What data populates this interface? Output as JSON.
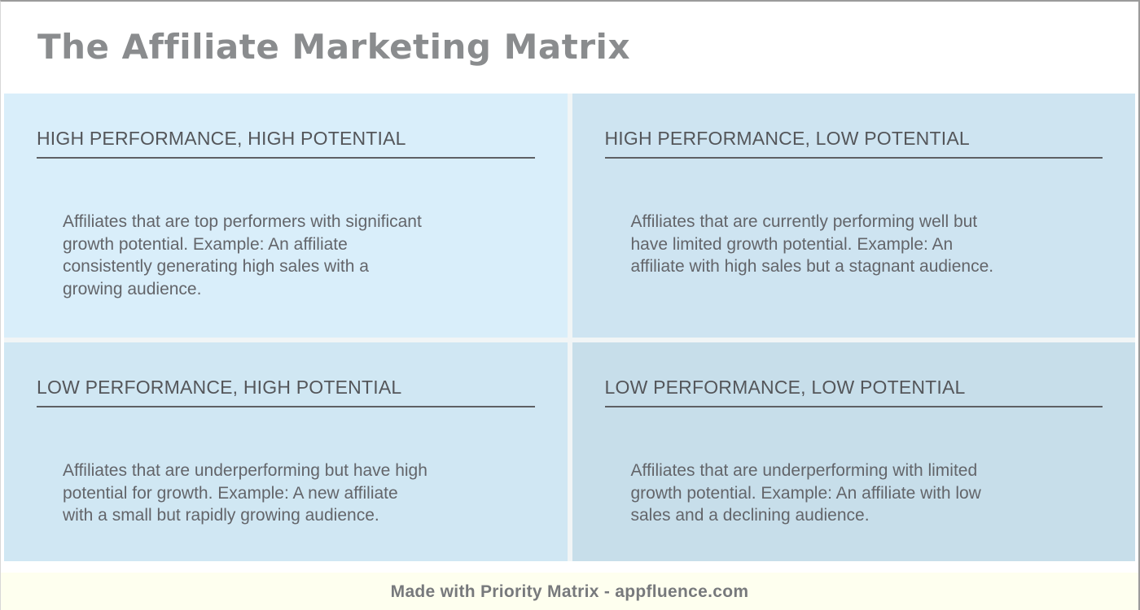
{
  "page": {
    "title": "The Affiliate Marketing Matrix"
  },
  "matrix": {
    "quadrants": [
      {
        "title": "HIGH PERFORMANCE, HIGH POTENTIAL",
        "description_lines": [
          "Affiliates that are top performers with significant",
          "growth potential. Example: An affiliate",
          "consistently generating high sales with a",
          "growing audience."
        ],
        "bg": "#d9eefa"
      },
      {
        "title": "HIGH PERFORMANCE, LOW POTENTIAL",
        "description_lines": [
          "Affiliates that are currently performing well but",
          "have limited growth potential. Example: An",
          "affiliate with high sales but a stagnant audience."
        ],
        "bg": "#cee4f1"
      },
      {
        "title": "LOW PERFORMANCE, HIGH POTENTIAL",
        "description_lines": [
          "Affiliates that are underperforming but have high",
          "potential for growth. Example: A new affiliate",
          "with a small but rapidly growing audience."
        ],
        "bg": "#d0e7f3"
      },
      {
        "title": "LOW PERFORMANCE, LOW POTENTIAL",
        "description_lines": [
          "Affiliates that are underperforming with limited",
          "growth potential. Example: An affiliate with low",
          "sales and a declining audience."
        ],
        "bg": "#c7deea"
      }
    ]
  },
  "footer": {
    "credit": "Made with Priority Matrix - appfluence.com",
    "bg": "#feffef"
  },
  "colors": {
    "title_gray": "#8a8c8e",
    "header_text": "#54565a",
    "body_text": "#63656a",
    "underline": "#5e6064",
    "page_border": "#9b9b9b"
  }
}
